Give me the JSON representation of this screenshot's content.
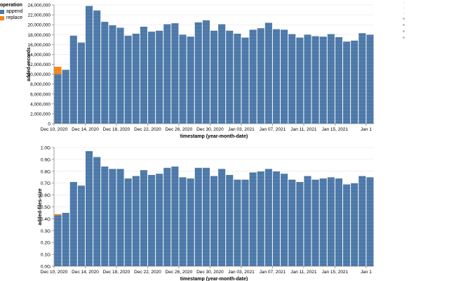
{
  "legend": {
    "title": "operation",
    "items": [
      {
        "label": "append",
        "color": "#4c78a8"
      },
      {
        "label": "replace",
        "color": "#f58518"
      }
    ]
  },
  "chart_data": [
    {
      "type": "bar",
      "stacked": true,
      "ylabel": "added-records",
      "xlabel": "timestamp (year-month-date)",
      "ylim": [
        0,
        24000000
      ],
      "y_ticks": [
        {
          "value": 0,
          "label": "0"
        },
        {
          "value": 2000000,
          "label": "2,000,000"
        },
        {
          "value": 4000000,
          "label": "4,000,000"
        },
        {
          "value": 6000000,
          "label": "6,000,000"
        },
        {
          "value": 8000000,
          "label": "8,000,000"
        },
        {
          "value": 10000000,
          "label": "10,000,000"
        },
        {
          "value": 12000000,
          "label": "12,000,000"
        },
        {
          "value": 14000000,
          "label": "14,000,000"
        },
        {
          "value": 16000000,
          "label": "16,000,000"
        },
        {
          "value": 18000000,
          "label": "18,000,000"
        },
        {
          "value": 20000000,
          "label": "20,000,000"
        },
        {
          "value": 22000000,
          "label": "22,000,000"
        },
        {
          "value": 24000000,
          "label": "24,000,000"
        }
      ],
      "x_ticks": [
        {
          "day": 0,
          "label": "Dec 10, 2020"
        },
        {
          "day": 4,
          "label": "Dec 14, 2020"
        },
        {
          "day": 8,
          "label": "Dec 18, 2020"
        },
        {
          "day": 12,
          "label": "Dec 22, 2020"
        },
        {
          "day": 16,
          "label": "Dec 26, 2020"
        },
        {
          "day": 20,
          "label": "Dec 30, 2020"
        },
        {
          "day": 24,
          "label": "Jan 03, 2021"
        },
        {
          "day": 28,
          "label": "Jan 07, 2021"
        },
        {
          "day": 32,
          "label": "Jan 11, 2021"
        },
        {
          "day": 36,
          "label": "Jan 15, 2021"
        },
        {
          "day": 40,
          "label": "Jan 1"
        }
      ],
      "series": [
        {
          "name": "append",
          "color": "#4c78a8",
          "values": [
            10000000,
            10900000,
            17800000,
            16400000,
            23800000,
            22900000,
            20600000,
            19900000,
            19400000,
            17800000,
            18200000,
            19600000,
            18600000,
            18800000,
            20100000,
            20300000,
            18000000,
            17600000,
            20500000,
            20900000,
            18800000,
            20100000,
            18800000,
            18200000,
            17400000,
            19000000,
            19300000,
            20400000,
            19100000,
            19000000,
            18100000,
            17400000,
            18000000,
            17700000,
            17600000,
            18100000,
            17500000,
            16600000,
            16800000,
            18300000,
            18000000
          ]
        },
        {
          "name": "replace",
          "color": "#f58518",
          "values": [
            1500000,
            0,
            0,
            0,
            0,
            0,
            0,
            0,
            0,
            0,
            0,
            0,
            0,
            0,
            0,
            0,
            0,
            0,
            0,
            0,
            0,
            0,
            0,
            0,
            0,
            0,
            0,
            0,
            0,
            0,
            0,
            0,
            0,
            0,
            0,
            0,
            0,
            0,
            0,
            0,
            0
          ]
        }
      ]
    },
    {
      "type": "bar",
      "stacked": true,
      "ylabel": "added-files-size",
      "xlabel": "timestamp (year-month-date)",
      "ylim": [
        0,
        1.0
      ],
      "y_ticks": [
        {
          "value": 0,
          "label": "0.0G"
        },
        {
          "value": 0.1,
          "label": "0.1G"
        },
        {
          "value": 0.2,
          "label": "0.2G"
        },
        {
          "value": 0.3,
          "label": "0.3G"
        },
        {
          "value": 0.4,
          "label": "0.4G"
        },
        {
          "value": 0.5,
          "label": "0.5G"
        },
        {
          "value": 0.6,
          "label": "0.6G"
        },
        {
          "value": 0.7,
          "label": "0.7G"
        },
        {
          "value": 0.8,
          "label": "0.8G"
        },
        {
          "value": 0.9,
          "label": "0.9G"
        },
        {
          "value": 1.0,
          "label": "1.0G"
        }
      ],
      "x_ticks": [
        {
          "day": 0,
          "label": "Dec 10, 2020"
        },
        {
          "day": 4,
          "label": "Dec 14, 2020"
        },
        {
          "day": 8,
          "label": "Dec 18, 2020"
        },
        {
          "day": 12,
          "label": "Dec 22, 2020"
        },
        {
          "day": 16,
          "label": "Dec 26, 2020"
        },
        {
          "day": 20,
          "label": "Dec 30, 2020"
        },
        {
          "day": 24,
          "label": "Jan 03, 2021"
        },
        {
          "day": 28,
          "label": "Jan 07, 2021"
        },
        {
          "day": 32,
          "label": "Jan 11, 2021"
        },
        {
          "day": 36,
          "label": "Jan 15, 2021"
        },
        {
          "day": 40,
          "label": "Jan 1"
        }
      ],
      "series": [
        {
          "name": "append",
          "color": "#4c78a8",
          "values": [
            0.43,
            0.45,
            0.71,
            0.68,
            0.97,
            0.92,
            0.84,
            0.82,
            0.82,
            0.74,
            0.76,
            0.81,
            0.77,
            0.78,
            0.83,
            0.84,
            0.75,
            0.74,
            0.83,
            0.83,
            0.76,
            0.82,
            0.77,
            0.73,
            0.73,
            0.79,
            0.8,
            0.82,
            0.8,
            0.78,
            0.73,
            0.71,
            0.76,
            0.73,
            0.74,
            0.75,
            0.74,
            0.69,
            0.7,
            0.76,
            0.75
          ]
        },
        {
          "name": "replace",
          "color": "#f58518",
          "values": [
            0.01,
            0,
            0,
            0,
            0,
            0,
            0,
            0,
            0,
            0,
            0,
            0,
            0,
            0,
            0,
            0,
            0,
            0,
            0,
            0,
            0,
            0,
            0,
            0,
            0,
            0,
            0,
            0,
            0,
            0,
            0,
            0,
            0,
            0,
            0,
            0,
            0,
            0,
            0,
            0,
            0
          ]
        }
      ]
    }
  ]
}
